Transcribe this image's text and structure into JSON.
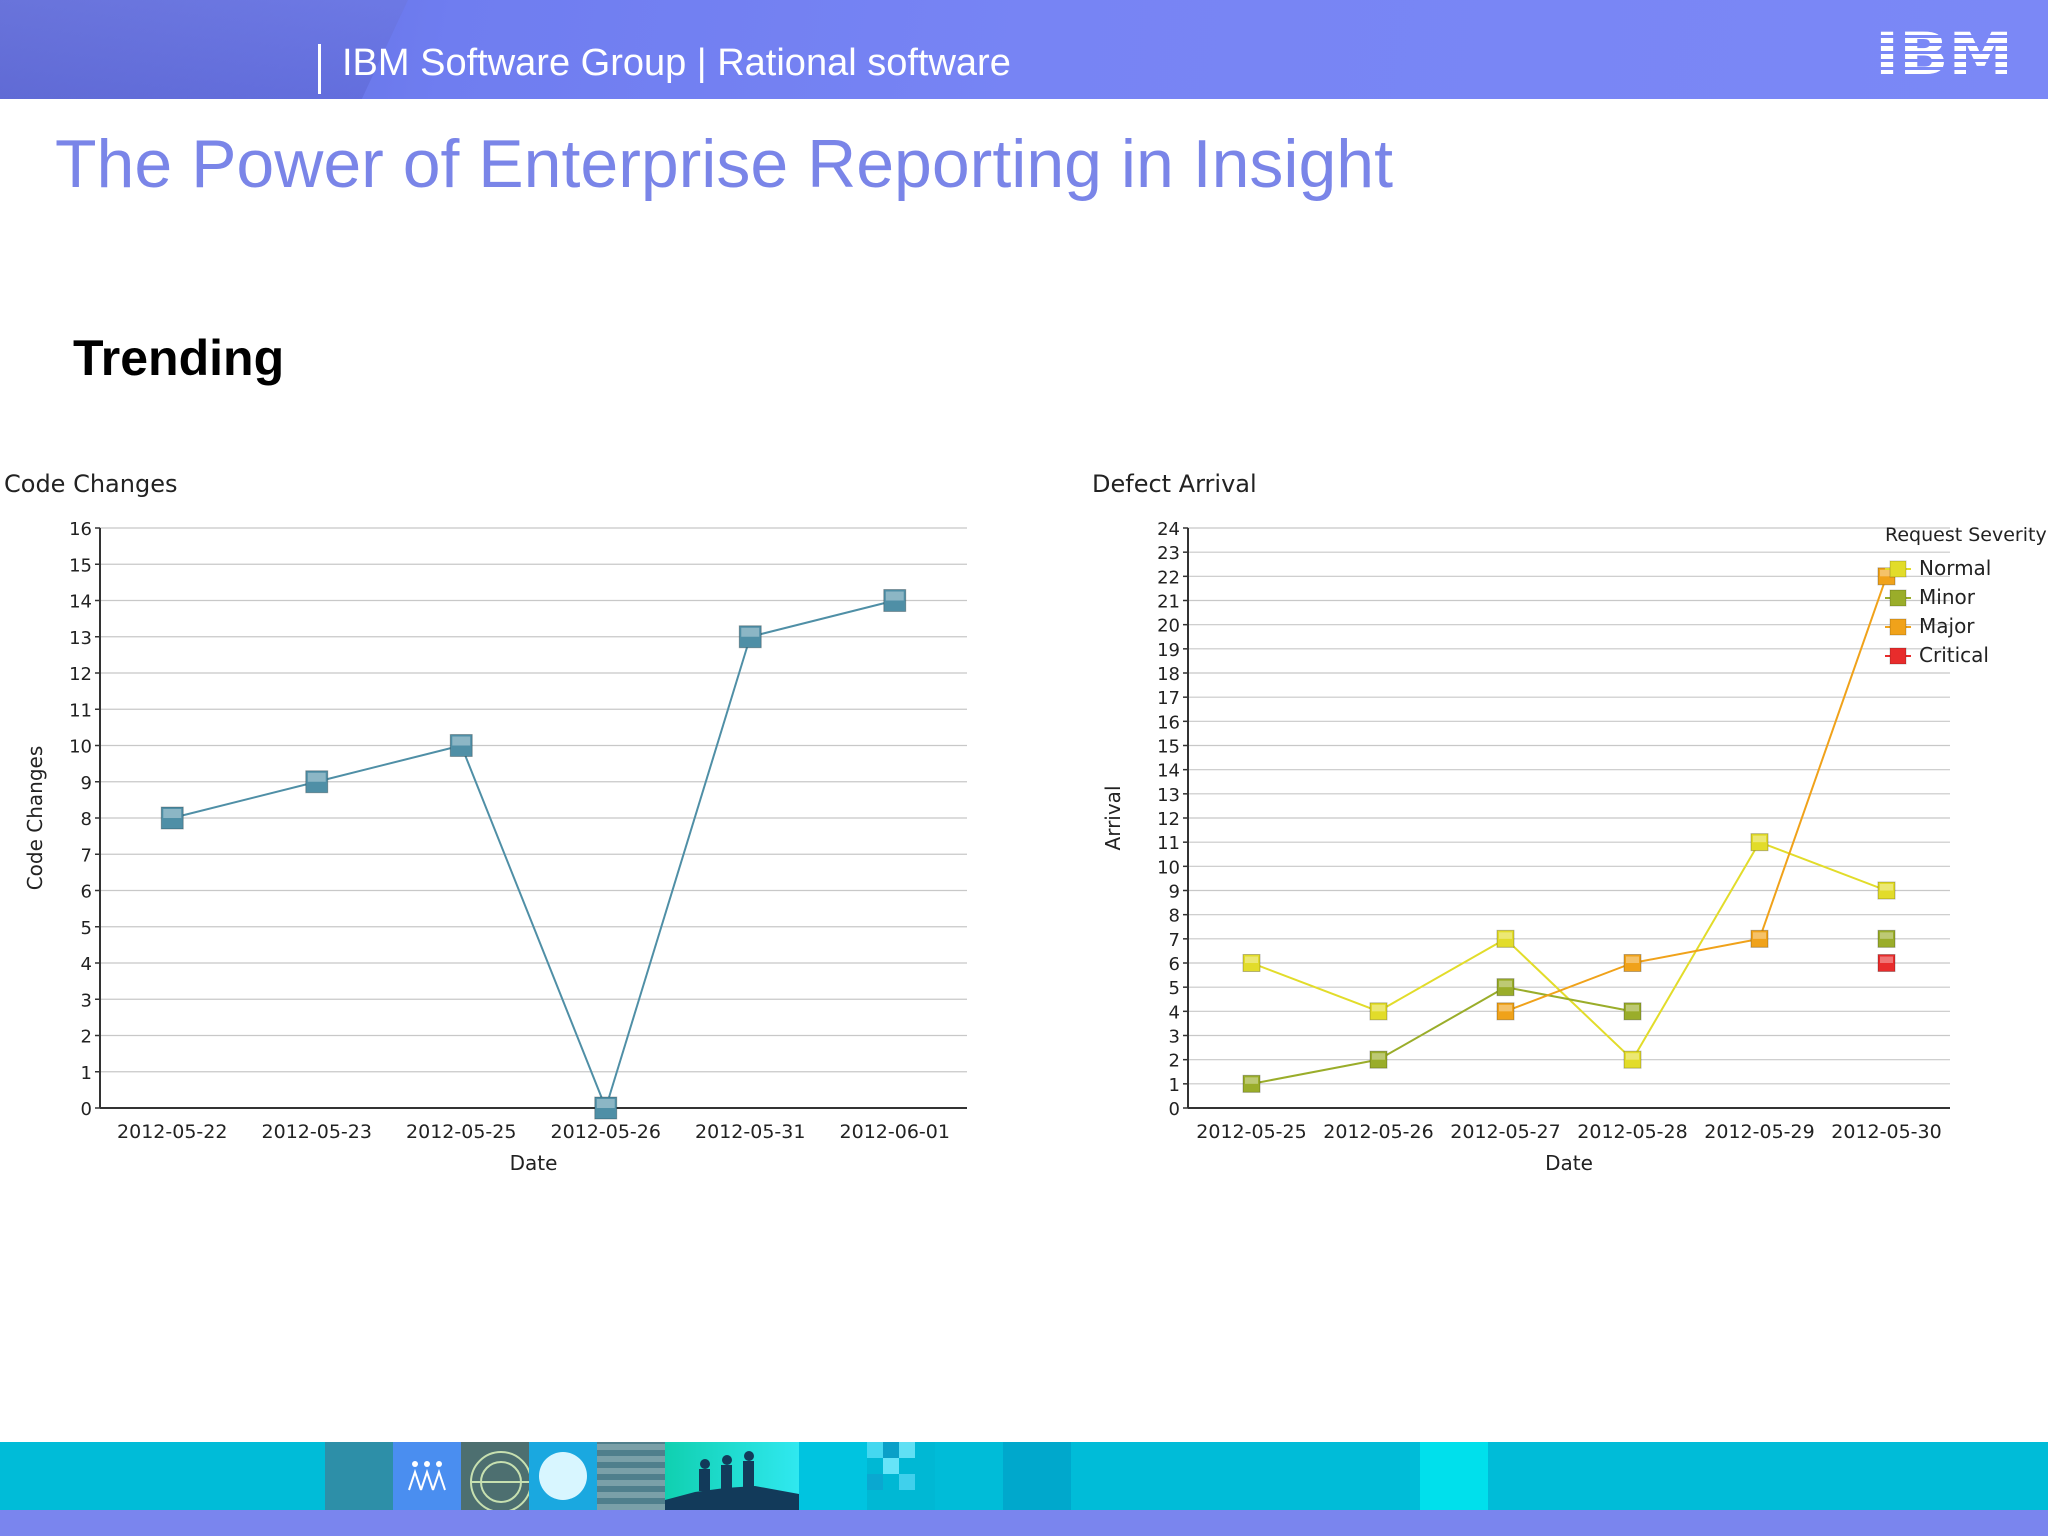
{
  "header": {
    "text": "IBM Software Group | Rational software",
    "logo_text": "IBM"
  },
  "slide": {
    "title": "The Power of Enterprise Reporting in Insight",
    "section_heading": "Trending"
  },
  "colors": {
    "header_bg": "#7784f4",
    "title": "#7a85e8",
    "footer": "#00bcd8",
    "series_code_changes": "#4f8fa6",
    "normal": "#e2dc2a",
    "minor": "#9aad2a",
    "major": "#f0a21a",
    "critical": "#e82c2c"
  },
  "chart_data": [
    {
      "type": "line",
      "title": "Code Changes",
      "xlabel": "Date",
      "ylabel": "Code Changes",
      "categories": [
        "2012-05-22",
        "2012-05-23",
        "2012-05-25",
        "2012-05-26",
        "2012-05-31",
        "2012-06-01"
      ],
      "series": [
        {
          "values": [
            8,
            9,
            10,
            0,
            13,
            14
          ]
        }
      ],
      "ylim": [
        0,
        16
      ],
      "yticks": [
        "0",
        "1",
        "2",
        "3",
        "4",
        "5",
        "6",
        "7",
        "8",
        "9",
        "10",
        "11",
        "12",
        "13",
        "14",
        "15",
        "16"
      ],
      "grid": true,
      "legend": "none"
    },
    {
      "type": "line",
      "title": "Defect Arrival",
      "xlabel": "Date",
      "ylabel": "Arrival",
      "categories": [
        "2012-05-25",
        "2012-05-26",
        "2012-05-27",
        "2012-05-28",
        "2012-05-29",
        "2012-05-30"
      ],
      "legend_title": "Request Severity",
      "series": [
        {
          "name": "Normal",
          "color": "#e2dc2a",
          "values": [
            6,
            4,
            7,
            2,
            11,
            9
          ]
        },
        {
          "name": "Minor",
          "color": "#9aad2a",
          "values": [
            1,
            2,
            5,
            4,
            null,
            7
          ]
        },
        {
          "name": "Major",
          "color": "#f0a21a",
          "values": [
            null,
            null,
            4,
            6,
            7,
            22
          ]
        },
        {
          "name": "Critical",
          "color": "#e82c2c",
          "values": [
            null,
            null,
            null,
            null,
            null,
            6
          ]
        }
      ],
      "ylim": [
        0,
        24
      ],
      "yticks": [
        "0",
        "1",
        "2",
        "3",
        "4",
        "5",
        "6",
        "7",
        "8",
        "9",
        "10",
        "11",
        "12",
        "13",
        "14",
        "15",
        "16",
        "17",
        "18",
        "19",
        "20",
        "21",
        "22",
        "23",
        "24"
      ],
      "grid": true,
      "legend": "right"
    }
  ]
}
